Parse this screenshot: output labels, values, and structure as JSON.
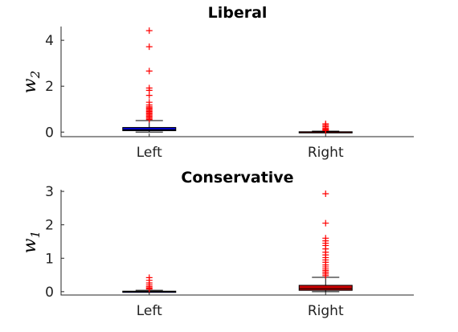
{
  "chart_data": [
    {
      "type": "box",
      "title": "Liberal",
      "ylabel_base": "w",
      "ylabel_sub": "2",
      "categories": [
        "Left",
        "Right"
      ],
      "ylim": [
        -0.2,
        4.6
      ],
      "yticks": [
        0,
        2,
        4
      ],
      "box_colors": [
        "#0000cc",
        "#cc0000"
      ],
      "boxes": [
        {
          "category": "Left",
          "q1": 0.06,
          "median": 0.1,
          "q3": 0.2,
          "whisker_low": 0.0,
          "whisker_high": 0.5,
          "outliers": [
            4.42,
            3.72,
            2.66,
            1.92,
            1.82,
            1.6,
            1.3,
            1.18,
            1.1,
            1.05,
            1.0,
            0.95,
            0.9,
            0.85,
            0.8,
            0.75,
            0.7,
            0.65,
            0.6,
            0.55
          ]
        },
        {
          "category": "Right",
          "q1": 0.0,
          "median": 0.005,
          "q3": 0.015,
          "whisker_low": 0.0,
          "whisker_high": 0.04,
          "outliers": [
            0.36,
            0.3,
            0.24,
            0.18,
            0.14,
            0.1,
            0.07
          ]
        }
      ]
    },
    {
      "type": "box",
      "title": "Conservative",
      "ylabel_base": "w",
      "ylabel_sub": "1",
      "categories": [
        "Left",
        "Right"
      ],
      "ylim": [
        -0.1,
        3.05
      ],
      "yticks": [
        0,
        1,
        2,
        3
      ],
      "box_colors": [
        "#0000cc",
        "#cc0000"
      ],
      "boxes": [
        {
          "category": "Left",
          "q1": 0.0,
          "median": 0.005,
          "q3": 0.015,
          "whisker_low": 0.0,
          "whisker_high": 0.04,
          "outliers": [
            0.42,
            0.34,
            0.26,
            0.2,
            0.15,
            0.11,
            0.08
          ]
        },
        {
          "category": "Right",
          "q1": 0.04,
          "median": 0.09,
          "q3": 0.19,
          "whisker_low": 0.0,
          "whisker_high": 0.43,
          "outliers": [
            2.93,
            2.05,
            1.6,
            1.52,
            1.45,
            1.38,
            1.28,
            1.18,
            1.1,
            1.02,
            0.95,
            0.88,
            0.8,
            0.74,
            0.68,
            0.63,
            0.58,
            0.53,
            0.48
          ]
        }
      ]
    }
  ]
}
